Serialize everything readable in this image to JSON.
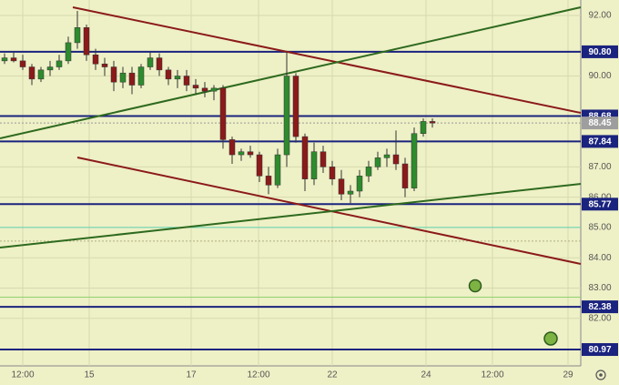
{
  "chart_data": {
    "type": "candlestick",
    "x": [
      1,
      3,
      5,
      7,
      9,
      11,
      13,
      15,
      17,
      19,
      21,
      23,
      25,
      27,
      29,
      31,
      33,
      35,
      37,
      39,
      41,
      43,
      45,
      47,
      49,
      51,
      53,
      55,
      57,
      59,
      61,
      63,
      65,
      67,
      69,
      71,
      73,
      75,
      77,
      79,
      81,
      83,
      85,
      87,
      89,
      91,
      93,
      95
    ],
    "open": [
      90.5,
      90.6,
      90.5,
      90.3,
      89.9,
      90.2,
      90.3,
      90.5,
      91.1,
      91.6,
      90.7,
      90.4,
      90.3,
      89.8,
      90.1,
      89.7,
      90.3,
      90.6,
      90.2,
      89.9,
      90.0,
      89.7,
      89.6,
      89.5,
      89.6,
      87.9,
      87.4,
      87.5,
      87.4,
      86.7,
      86.4,
      87.4,
      90.0,
      88.0,
      86.6,
      87.5,
      87.0,
      86.6,
      86.1,
      86.2,
      86.7,
      87.0,
      87.3,
      87.4,
      87.1,
      86.3,
      88.1,
      88.5
    ],
    "high": [
      90.75,
      90.8,
      90.7,
      90.4,
      90.3,
      90.5,
      90.7,
      91.3,
      92.15,
      91.7,
      90.9,
      90.6,
      90.5,
      90.3,
      90.3,
      90.4,
      90.8,
      90.75,
      90.3,
      90.2,
      90.2,
      89.9,
      89.8,
      89.7,
      89.7,
      88.0,
      87.6,
      87.7,
      87.5,
      87.0,
      87.6,
      90.8,
      90.1,
      88.1,
      87.8,
      87.7,
      87.2,
      86.9,
      86.4,
      86.9,
      87.2,
      87.5,
      87.6,
      88.2,
      87.3,
      88.3,
      88.6,
      88.6
    ],
    "low": [
      90.4,
      90.45,
      90.2,
      89.7,
      89.8,
      90.0,
      90.2,
      90.4,
      90.9,
      90.5,
      90.2,
      90.0,
      89.5,
      89.6,
      89.4,
      89.6,
      90.2,
      90.0,
      89.7,
      89.6,
      89.5,
      89.4,
      89.3,
      89.2,
      87.6,
      87.1,
      87.2,
      87.3,
      86.5,
      86.1,
      86.3,
      87.0,
      87.8,
      86.2,
      86.4,
      86.8,
      86.4,
      85.9,
      85.8,
      86.0,
      86.5,
      86.9,
      87.0,
      86.9,
      86.0,
      86.2,
      88.0,
      88.3
    ],
    "close": [
      90.6,
      90.5,
      90.3,
      89.9,
      90.2,
      90.3,
      90.5,
      91.1,
      91.6,
      90.7,
      90.4,
      90.3,
      89.8,
      90.1,
      89.7,
      90.3,
      90.6,
      90.2,
      89.9,
      90.0,
      89.7,
      89.6,
      89.5,
      89.6,
      87.9,
      87.4,
      87.5,
      87.4,
      86.7,
      86.4,
      87.4,
      90.0,
      88.0,
      86.6,
      87.5,
      87.0,
      86.6,
      86.1,
      86.2,
      86.7,
      87.0,
      87.3,
      87.4,
      87.1,
      86.3,
      88.1,
      88.5,
      88.45
    ],
    "up_color": "#2e8b2e",
    "down_color": "#8b1a1a",
    "xlim": [
      0,
      127.6
    ],
    "xticks": [
      {
        "value": 5,
        "label": "12:00"
      },
      {
        "value": 19.6,
        "label": "15"
      },
      {
        "value": 42,
        "label": "17"
      },
      {
        "value": 56.8,
        "label": "12:00"
      },
      {
        "value": 73,
        "label": "22"
      },
      {
        "value": 93.6,
        "label": "24"
      },
      {
        "value": 108.2,
        "label": "12:00"
      },
      {
        "value": 124.8,
        "label": "29"
      }
    ],
    "ylim": [
      80.43,
      92.51
    ],
    "yticks": [
      {
        "value": 92,
        "label": "92.00"
      },
      {
        "value": 90,
        "label": "90.00"
      },
      {
        "value": 87,
        "label": "87.00"
      },
      {
        "value": 86,
        "label": "86.00"
      },
      {
        "value": 85,
        "label": "85.00"
      },
      {
        "value": 84,
        "label": "84.00"
      },
      {
        "value": 83,
        "label": "83.00"
      },
      {
        "value": 82,
        "label": "82.00"
      }
    ],
    "grid": true,
    "levels": [
      {
        "value": 90.8,
        "label": "90.80"
      },
      {
        "value": 88.68,
        "label": "88.68"
      },
      {
        "value": 87.84,
        "label": "87.84"
      },
      {
        "value": 85.77,
        "label": "85.77"
      },
      {
        "value": 82.38,
        "label": "82.38"
      },
      {
        "value": 80.97,
        "label": "80.97"
      }
    ],
    "level_color": "#1a237e",
    "last_price": {
      "value": 88.45,
      "label": "88.45"
    },
    "guide_lines": [
      {
        "value": 85.0,
        "color": "#5fd3b3"
      },
      {
        "value": 82.7,
        "color": "#8fd36f"
      },
      {
        "value": 84.55,
        "color": "#b0b080"
      }
    ]
  }
}
